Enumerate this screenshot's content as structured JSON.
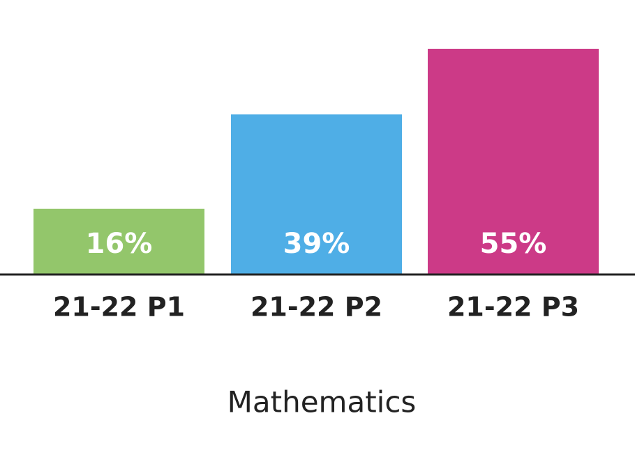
{
  "chart_data": {
    "type": "bar",
    "categories": [
      "21-22 P1",
      "21-22 P2",
      "21-22 P3"
    ],
    "values": [
      16,
      39,
      55
    ],
    "value_labels": [
      "16%",
      "39%",
      "55%"
    ],
    "colors": [
      "#93c66b",
      "#4faee6",
      "#cc3a87"
    ],
    "x_label": "Mathematics"
  }
}
